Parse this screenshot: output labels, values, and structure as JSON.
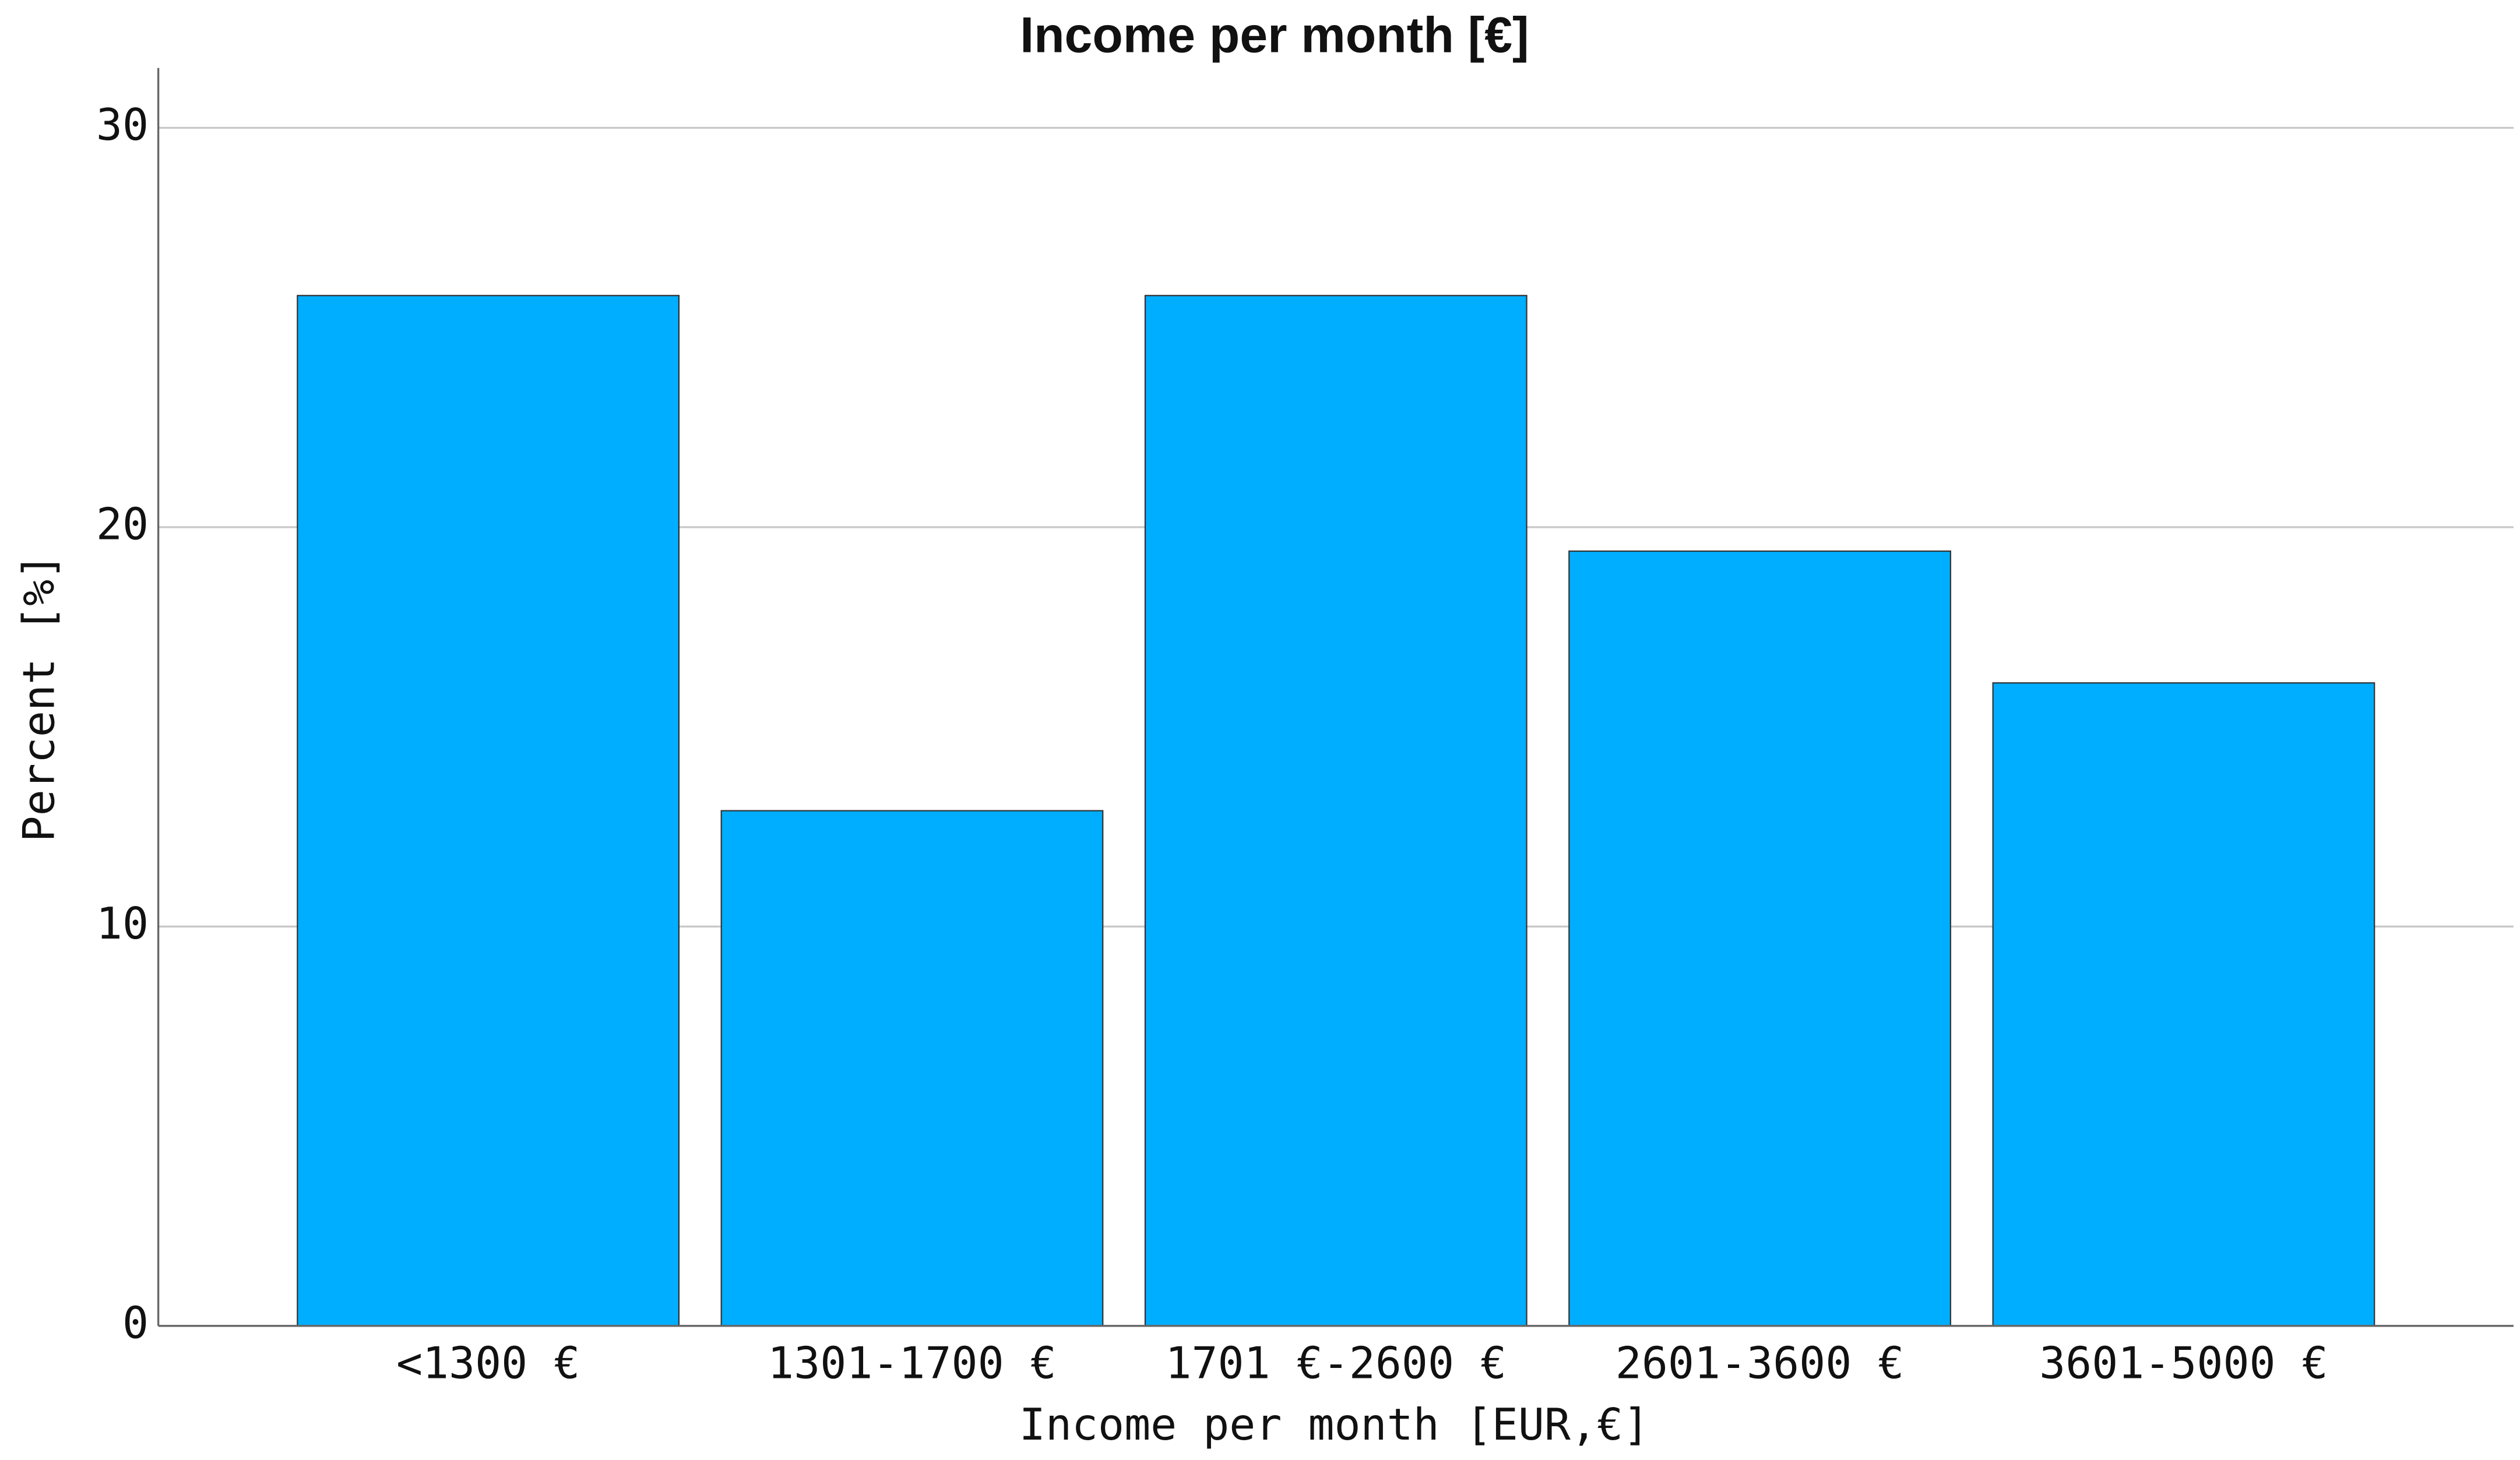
{
  "chart_data": {
    "type": "bar",
    "title": "Income per month [€]",
    "x_label": "Income per month [EUR,€]",
    "y_label": "Percent [%]",
    "categories": [
      "<1300 €",
      "1301-1700 €",
      "1701 €-2600 €",
      "2601-3600 €",
      "3601-5000 €"
    ],
    "values": [
      25.8,
      12.9,
      25.8,
      19.4,
      16.1
    ],
    "color": "#00aeff",
    "ylim": [
      0,
      31.5
    ],
    "yticks": [
      0,
      10,
      20,
      30
    ],
    "grid": true
  }
}
